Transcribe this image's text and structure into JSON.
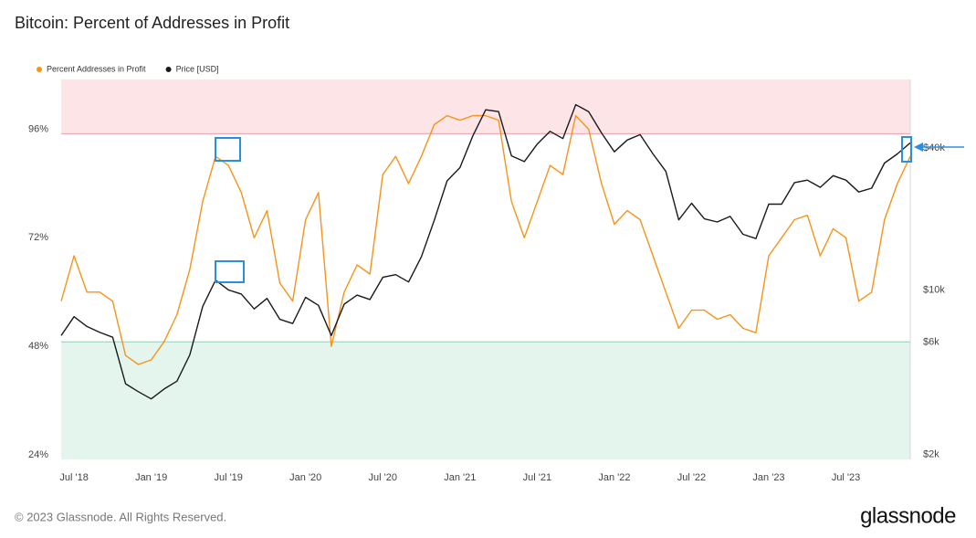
{
  "chart_data": {
    "type": "line",
    "title": "Bitcoin: Percent of Addresses in Profit",
    "x": [
      "2018-06",
      "2018-07",
      "2018-08",
      "2018-09",
      "2018-10",
      "2018-11",
      "2018-12",
      "2019-01",
      "2019-02",
      "2019-03",
      "2019-04",
      "2019-05",
      "2019-06",
      "2019-07",
      "2019-08",
      "2019-09",
      "2019-10",
      "2019-11",
      "2019-12",
      "2020-01",
      "2020-02",
      "2020-03",
      "2020-04",
      "2020-05",
      "2020-06",
      "2020-07",
      "2020-08",
      "2020-09",
      "2020-10",
      "2020-11",
      "2020-12",
      "2021-01",
      "2021-02",
      "2021-03",
      "2021-04",
      "2021-05",
      "2021-06",
      "2021-07",
      "2021-08",
      "2021-09",
      "2021-10",
      "2021-11",
      "2021-12",
      "2022-01",
      "2022-02",
      "2022-03",
      "2022-04",
      "2022-05",
      "2022-06",
      "2022-07",
      "2022-08",
      "2022-09",
      "2022-10",
      "2022-11",
      "2022-12",
      "2023-01",
      "2023-02",
      "2023-03",
      "2023-04",
      "2023-05",
      "2023-06",
      "2023-07",
      "2023-08",
      "2023-09",
      "2023-10",
      "2023-11",
      "2023-12"
    ],
    "series": [
      {
        "name": "Percent Addresses in Profit",
        "color": "#f7931a",
        "axis": "y",
        "values": [
          58,
          68,
          60,
          60,
          58,
          46,
          44,
          45,
          49,
          55,
          65,
          80,
          90,
          88,
          82,
          72,
          78,
          62,
          58,
          76,
          82,
          48,
          60,
          66,
          64,
          86,
          90,
          84,
          90,
          97,
          99,
          98,
          99,
          99,
          98,
          80,
          72,
          80,
          88,
          86,
          99,
          96,
          84,
          75,
          78,
          76,
          68,
          60,
          52,
          56,
          56,
          54,
          55,
          52,
          51,
          68,
          72,
          76,
          77,
          68,
          74,
          72,
          58,
          60,
          76,
          84,
          90
        ]
      },
      {
        "name": "Price [USD]",
        "color": "#1a1a1a",
        "axis": "y2",
        "values": [
          6400,
          7700,
          7000,
          6600,
          6300,
          4000,
          3700,
          3450,
          3800,
          4100,
          5300,
          8500,
          11000,
          10000,
          9600,
          8300,
          9200,
          7500,
          7200,
          9300,
          8600,
          6400,
          8700,
          9500,
          9100,
          11300,
          11600,
          10800,
          13800,
          19700,
          29000,
          33000,
          45000,
          58000,
          57000,
          37000,
          35000,
          41500,
          47000,
          43800,
          61000,
          57000,
          46300,
          38500,
          43200,
          45500,
          37700,
          31800,
          19800,
          23300,
          20000,
          19400,
          20500,
          17200,
          16500,
          23100,
          23100,
          28500,
          29200,
          27200,
          30500,
          29200,
          26000,
          27000,
          34500,
          37700,
          42000
        ]
      }
    ],
    "xlim": [
      "2018-06",
      "2023-12"
    ],
    "xticks": [
      {
        "value": "2018-07",
        "label": "Jul '18"
      },
      {
        "value": "2019-01",
        "label": "Jan '19"
      },
      {
        "value": "2019-07",
        "label": "Jul '19"
      },
      {
        "value": "2020-01",
        "label": "Jan '20"
      },
      {
        "value": "2020-07",
        "label": "Jul '20"
      },
      {
        "value": "2021-01",
        "label": "Jan '21"
      },
      {
        "value": "2021-07",
        "label": "Jul '21"
      },
      {
        "value": "2022-01",
        "label": "Jan '22"
      },
      {
        "value": "2022-07",
        "label": "Jul '22"
      },
      {
        "value": "2023-01",
        "label": "Jan '23"
      },
      {
        "value": "2023-07",
        "label": "Jul '23"
      }
    ],
    "ylim": [
      23,
      107
    ],
    "yticks": [
      {
        "value": 24,
        "label": "24%"
      },
      {
        "value": 48,
        "label": "48%"
      },
      {
        "value": 72,
        "label": "72%"
      },
      {
        "value": 96,
        "label": "96%"
      }
    ],
    "y2scale": "log",
    "y2lim": [
      1910,
      78000
    ],
    "y2ticks": [
      {
        "value": 2000,
        "label": "$2k"
      },
      {
        "value": 6000,
        "label": "$6k"
      },
      {
        "value": 10000,
        "label": "$10k"
      },
      {
        "value": 40000,
        "label": "$40k"
      }
    ],
    "zones": [
      {
        "from": 95,
        "to": 107,
        "color": "#fde4e7",
        "line": "#e9a3aa"
      },
      {
        "from": 23,
        "to": 49,
        "color": "#e4f5ee",
        "line": "#93cdbb"
      }
    ],
    "legend": "top-left"
  },
  "footer": {
    "copyright": "© 2023 Glassnode. All Rights Reserved.",
    "logo": "glassnode"
  }
}
